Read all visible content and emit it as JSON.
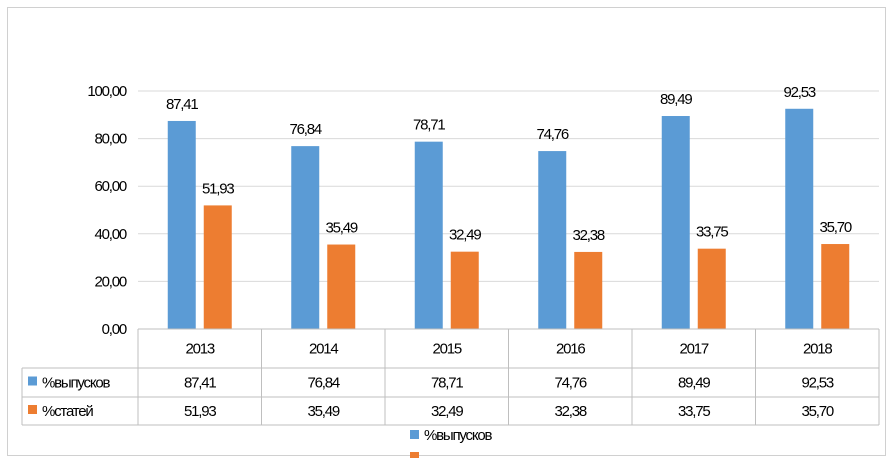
{
  "chart_data": {
    "type": "bar",
    "categories": [
      "2013",
      "2014",
      "2015",
      "2016",
      "2017",
      "2018"
    ],
    "series": [
      {
        "name": "%выпусков",
        "color": "#5b9bd5",
        "values": [
          87.41,
          76.84,
          78.71,
          74.76,
          89.49,
          92.53
        ],
        "labels": [
          "87,41",
          "76,84",
          "78,71",
          "74,76",
          "89,49",
          "92,53"
        ]
      },
      {
        "name": "%статей",
        "color": "#ed7d31",
        "values": [
          51.93,
          35.49,
          32.49,
          32.38,
          33.75,
          35.7
        ],
        "labels": [
          "51,93",
          "35,49",
          "32,49",
          "32,38",
          "33,75",
          "35,70"
        ]
      }
    ],
    "ylim": [
      0,
      100
    ],
    "yticks": [
      0,
      20,
      40,
      60,
      80,
      100
    ],
    "ytick_labels": [
      "0,00",
      "20,00",
      "40,00",
      "60,00",
      "80,00",
      "100,00"
    ],
    "gridlines": true,
    "data_table": true,
    "legend_position": "bottom",
    "legend_visible_entries": [
      "%выпусков"
    ]
  }
}
